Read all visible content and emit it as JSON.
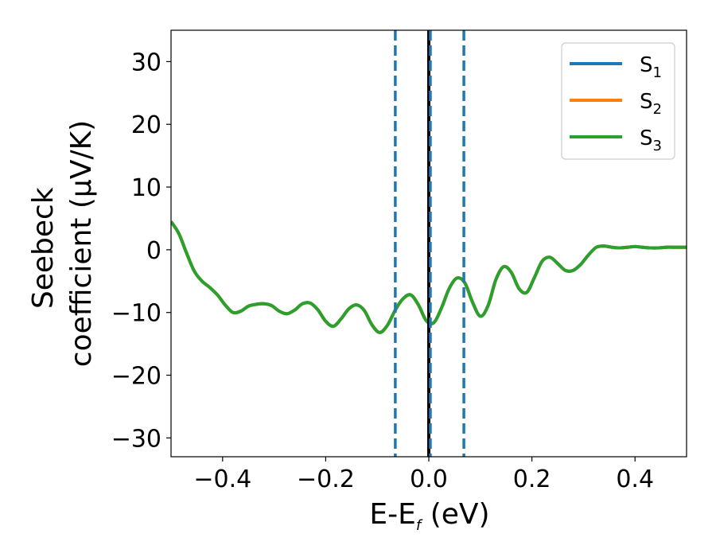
{
  "chart_data": {
    "type": "line",
    "xlabel_main": "E-E",
    "xlabel_sub": "f",
    "xlabel_unit": " (eV)",
    "ylabel_line1": "Seebeck",
    "ylabel_line2": "coefficient  (μV/K)",
    "xlim": [
      -0.5,
      0.5
    ],
    "ylim": [
      -33,
      35
    ],
    "xticks": [
      -0.4,
      -0.2,
      0.0,
      0.2,
      0.4
    ],
    "xtick_labels": [
      "−0.4",
      "−0.2",
      "0.0",
      "0.2",
      "0.4"
    ],
    "yticks": [
      -30,
      -20,
      -10,
      0,
      10,
      20,
      30
    ],
    "ytick_labels": [
      "−30",
      "−20",
      "−10",
      "0",
      "10",
      "20",
      "30"
    ],
    "legend_position": "top-right",
    "series": [
      {
        "name": "S",
        "sub": "1",
        "color": "#1f77b4"
      },
      {
        "name": "S",
        "sub": "2",
        "color": "#ff7f0e"
      },
      {
        "name": "S",
        "sub": "3",
        "color": "#2ca02c"
      }
    ],
    "curve": {
      "x": [
        -0.5,
        -0.485,
        -0.47,
        -0.455,
        -0.44,
        -0.425,
        -0.41,
        -0.395,
        -0.38,
        -0.365,
        -0.35,
        -0.335,
        -0.32,
        -0.305,
        -0.29,
        -0.275,
        -0.26,
        -0.245,
        -0.23,
        -0.215,
        -0.2,
        -0.185,
        -0.17,
        -0.155,
        -0.14,
        -0.125,
        -0.11,
        -0.095,
        -0.08,
        -0.065,
        -0.05,
        -0.035,
        -0.02,
        -0.005,
        0.01,
        0.025,
        0.04,
        0.055,
        0.07,
        0.085,
        0.1,
        0.115,
        0.13,
        0.145,
        0.16,
        0.175,
        0.19,
        0.205,
        0.22,
        0.235,
        0.25,
        0.265,
        0.28,
        0.295,
        0.31,
        0.325,
        0.34,
        0.355,
        0.37,
        0.385,
        0.4,
        0.415,
        0.43,
        0.445,
        0.46,
        0.475,
        0.49,
        0.5
      ],
      "y": [
        4.5,
        2.6,
        -0.5,
        -3.4,
        -5.0,
        -6.0,
        -7.2,
        -8.8,
        -10.0,
        -9.8,
        -9.0,
        -8.7,
        -8.6,
        -8.9,
        -9.8,
        -10.2,
        -9.6,
        -8.6,
        -8.5,
        -9.6,
        -11.4,
        -12.2,
        -11.0,
        -9.4,
        -8.8,
        -9.7,
        -12.0,
        -13.2,
        -12.0,
        -9.6,
        -7.8,
        -7.2,
        -8.8,
        -11.3,
        -11.6,
        -9.2,
        -6.1,
        -4.5,
        -5.3,
        -8.4,
        -10.6,
        -8.9,
        -4.8,
        -2.7,
        -3.6,
        -6.2,
        -6.8,
        -4.4,
        -1.8,
        -1.2,
        -2.2,
        -3.3,
        -3.3,
        -2.3,
        -0.8,
        0.4,
        0.6,
        0.4,
        0.3,
        0.4,
        0.5,
        0.4,
        0.3,
        0.3,
        0.4,
        0.4,
        0.4,
        0.4
      ]
    },
    "vlines": [
      {
        "x": -0.065,
        "style": "dashed",
        "color": "#1f77b4"
      },
      {
        "x": 0.0,
        "style": "solid",
        "color": "#000000"
      },
      {
        "x": 0.003,
        "style": "dashed",
        "color": "#1f77b4"
      },
      {
        "x": 0.068,
        "style": "dashed",
        "color": "#1f77b4"
      }
    ]
  }
}
